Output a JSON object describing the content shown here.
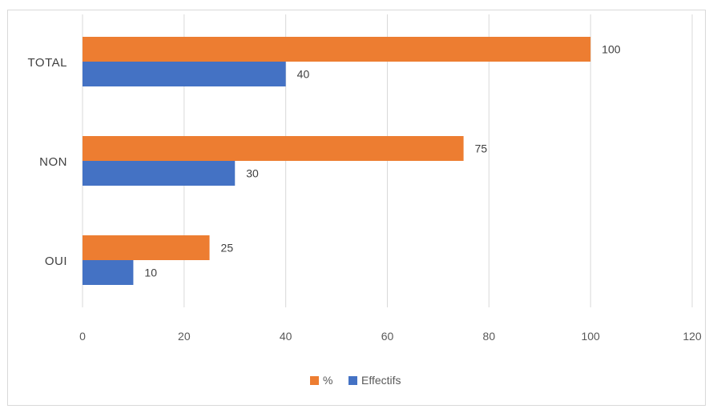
{
  "chart_data": {
    "type": "bar",
    "orientation": "horizontal",
    "categories": [
      "OUI",
      "NON",
      "TOTAL"
    ],
    "series": [
      {
        "name": "Effectifs",
        "values": [
          10,
          30,
          40
        ],
        "color": "#4472c4"
      },
      {
        "name": "%",
        "values": [
          25,
          75,
          100
        ],
        "color": "#ed7d31"
      }
    ],
    "xlim": [
      0,
      120
    ],
    "xticks": [
      0,
      20,
      40,
      60,
      80,
      100,
      120
    ],
    "grid": "vertical",
    "legend_position": "bottom"
  }
}
